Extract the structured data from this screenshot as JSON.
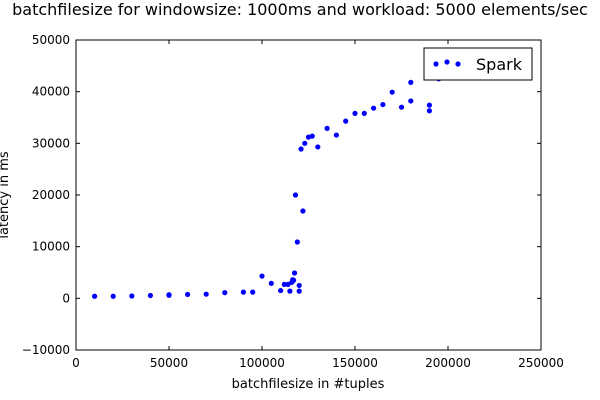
{
  "chart_data": {
    "type": "scatter",
    "title": "batchfilesize for windowsize: 1000ms and workload: 5000 elements/sec",
    "xlabel": "batchfilesize in #tuples",
    "ylabel": "latency in ms",
    "xlim": [
      0,
      250000
    ],
    "ylim": [
      -10000,
      50000
    ],
    "x_ticks": [
      0,
      50000,
      100000,
      150000,
      200000,
      250000
    ],
    "y_ticks": [
      -10000,
      0,
      10000,
      20000,
      30000,
      40000,
      50000
    ],
    "x_tick_labels": [
      "0",
      "50000",
      "100000",
      "150000",
      "200000",
      "250000"
    ],
    "y_tick_labels": [
      "−10000",
      "0",
      "10000",
      "20000",
      "30000",
      "40000",
      "50000"
    ],
    "grid": false,
    "legend": {
      "placement": "top-right",
      "entries": [
        "Spark"
      ]
    },
    "colors": {
      "series": "#0000ff",
      "axes": "#000000",
      "background": "#ffffff"
    },
    "series": [
      {
        "name": "Spark",
        "points": [
          [
            10000,
            400
          ],
          [
            20000,
            400
          ],
          [
            30000,
            450
          ],
          [
            40000,
            550
          ],
          [
            50000,
            600
          ],
          [
            50000,
            700
          ],
          [
            60000,
            750
          ],
          [
            70000,
            800
          ],
          [
            80000,
            1100
          ],
          [
            90000,
            1200
          ],
          [
            95000,
            1200
          ],
          [
            100000,
            4300
          ],
          [
            105000,
            2900
          ],
          [
            110000,
            1500
          ],
          [
            112000,
            2700
          ],
          [
            114000,
            2700
          ],
          [
            115000,
            1400
          ],
          [
            116000,
            3100
          ],
          [
            116500,
            3600
          ],
          [
            117000,
            3500
          ],
          [
            117500,
            4900
          ],
          [
            118000,
            20000
          ],
          [
            119000,
            10900
          ],
          [
            120000,
            2500
          ],
          [
            120000,
            1400
          ],
          [
            121000,
            28900
          ],
          [
            122000,
            16900
          ],
          [
            123000,
            30000
          ],
          [
            125000,
            31200
          ],
          [
            127000,
            31400
          ],
          [
            130000,
            29300
          ],
          [
            135000,
            32900
          ],
          [
            140000,
            31600
          ],
          [
            145000,
            34300
          ],
          [
            150000,
            35800
          ],
          [
            155000,
            35800
          ],
          [
            160000,
            36800
          ],
          [
            165000,
            37500
          ],
          [
            170000,
            39900
          ],
          [
            175000,
            37000
          ],
          [
            180000,
            38200
          ],
          [
            180000,
            41800
          ],
          [
            190000,
            37400
          ],
          [
            190000,
            36300
          ],
          [
            195000,
            42500
          ]
        ]
      }
    ]
  }
}
